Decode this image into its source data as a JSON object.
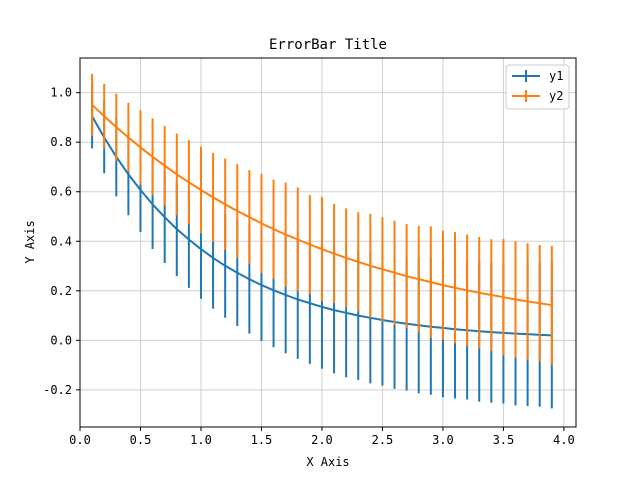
{
  "chart_data": {
    "type": "line",
    "title": "ErrorBar Title",
    "xlabel": "X Axis",
    "ylabel": "Y Axis",
    "xlim": [
      -0.0,
      4.1
    ],
    "ylim": [
      -0.35,
      1.14
    ],
    "xticks": [
      "0.0",
      "0.5",
      "1.0",
      "1.5",
      "2.0",
      "2.5",
      "3.0",
      "3.5",
      "4.0"
    ],
    "yticks": [
      "-0.2",
      "0.0",
      "0.2",
      "0.4",
      "0.6",
      "0.8",
      "1.0"
    ],
    "grid": true,
    "legend_position": "top-right",
    "x": [
      0.1,
      0.2,
      0.3,
      0.4,
      0.5,
      0.6,
      0.7,
      0.8,
      0.9,
      1.0,
      1.1,
      1.2,
      1.3,
      1.4,
      1.5,
      1.6,
      1.7,
      1.8,
      1.9,
      2.0,
      2.1,
      2.2,
      2.3,
      2.4,
      2.5,
      2.6,
      2.7,
      2.8,
      2.9,
      3.0,
      3.1,
      3.2,
      3.3,
      3.4,
      3.5,
      3.6,
      3.7,
      3.8,
      3.9
    ],
    "series": [
      {
        "name": "y1",
        "color": "#1f77b4",
        "values": [
          0.905,
          0.819,
          0.741,
          0.67,
          0.607,
          0.549,
          0.497,
          0.449,
          0.407,
          0.368,
          0.333,
          0.301,
          0.273,
          0.247,
          0.223,
          0.202,
          0.183,
          0.165,
          0.15,
          0.135,
          0.122,
          0.111,
          0.1,
          0.091,
          0.082,
          0.074,
          0.067,
          0.061,
          0.055,
          0.05,
          0.045,
          0.041,
          0.037,
          0.033,
          0.03,
          0.027,
          0.025,
          0.022,
          0.02
        ],
        "yerr": [
          0.13,
          0.145,
          0.16,
          0.165,
          0.17,
          0.18,
          0.185,
          0.19,
          0.195,
          0.2,
          0.205,
          0.21,
          0.215,
          0.22,
          0.225,
          0.23,
          0.235,
          0.24,
          0.245,
          0.25,
          0.255,
          0.26,
          0.26,
          0.265,
          0.265,
          0.27,
          0.27,
          0.275,
          0.275,
          0.28,
          0.28,
          0.28,
          0.285,
          0.285,
          0.285,
          0.29,
          0.29,
          0.29,
          0.295
        ]
      },
      {
        "name": "y2",
        "color": "#ff7f0e",
        "values": [
          0.951,
          0.905,
          0.861,
          0.819,
          0.779,
          0.741,
          0.705,
          0.67,
          0.638,
          0.607,
          0.577,
          0.549,
          0.522,
          0.497,
          0.472,
          0.449,
          0.427,
          0.407,
          0.387,
          0.368,
          0.35,
          0.333,
          0.317,
          0.301,
          0.287,
          0.273,
          0.259,
          0.247,
          0.235,
          0.223,
          0.212,
          0.202,
          0.192,
          0.183,
          0.174,
          0.165,
          0.157,
          0.15,
          0.142
        ],
        "yerr": [
          0.125,
          0.13,
          0.135,
          0.14,
          0.15,
          0.155,
          0.16,
          0.165,
          0.17,
          0.175,
          0.18,
          0.185,
          0.19,
          0.19,
          0.2,
          0.2,
          0.21,
          0.21,
          0.2,
          0.21,
          0.2,
          0.2,
          0.2,
          0.21,
          0.21,
          0.21,
          0.21,
          0.215,
          0.225,
          0.22,
          0.225,
          0.225,
          0.225,
          0.225,
          0.235,
          0.235,
          0.235,
          0.235,
          0.24
        ]
      }
    ]
  }
}
